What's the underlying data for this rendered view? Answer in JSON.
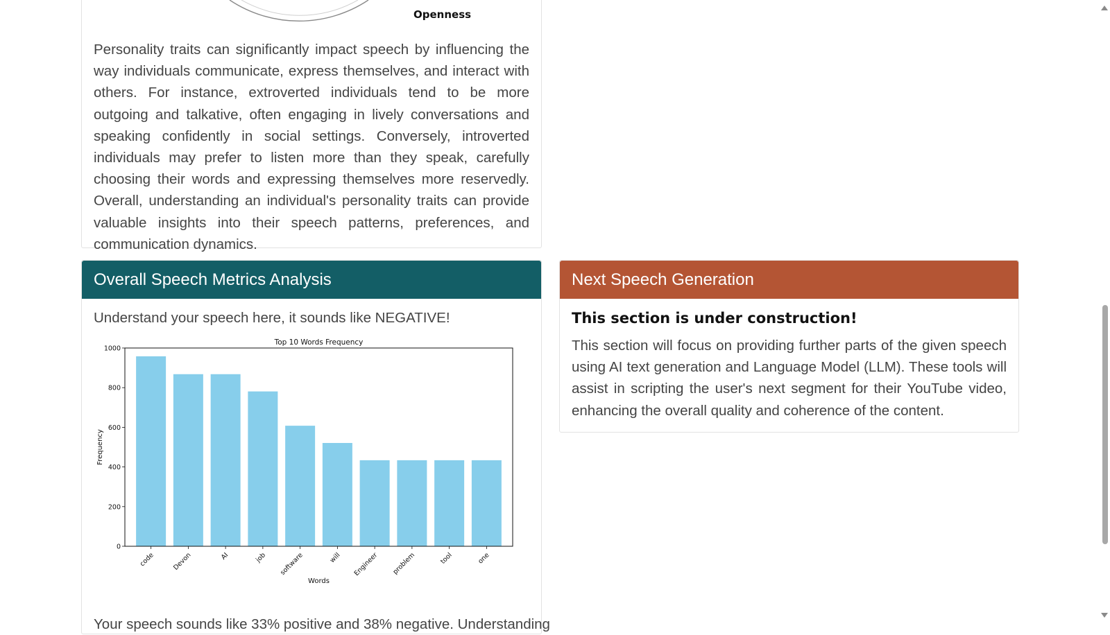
{
  "personality": {
    "radar_axis_label": "Openness",
    "paragraph": "Personality traits can significantly impact speech by influencing the way individuals communicate, express themselves, and interact with others. For instance, extroverted individuals tend to be more outgoing and talkative, often engaging in lively conversations and speaking confidently in social settings. Conversely, introverted individuals may prefer to listen more than they speak, carefully choosing their words and expressing themselves more reservedly. Overall, understanding an individual's personality traits can provide valuable insights into their speech patterns, preferences, and communication dynamics."
  },
  "metrics": {
    "header": "Overall Speech Metrics Analysis",
    "header_color": "#135e66",
    "subtitle": "Understand your speech here, it sounds like NEGATIVE!",
    "bottom_text": "Your speech sounds like 33% positive and 38% negative. Understanding"
  },
  "next": {
    "header": "Next Speech Generation",
    "header_color": "#b45534",
    "title": "This section is under construction!",
    "paragraph": "This section will focus on providing further parts of the given speech using AI text generation and Language Model (LLM). These tools will assist in scripting the user's next segment for their YouTube video, enhancing the overall quality and coherence of the content."
  },
  "chart_data": {
    "type": "bar",
    "title": "Top 10 Words Frequency",
    "xlabel": "Words",
    "ylabel": "Frequency",
    "categories": [
      "code",
      "Devon",
      "AI",
      "job",
      "software",
      "will",
      "Engineer",
      "problem",
      "tool",
      "one"
    ],
    "values": [
      958,
      868,
      868,
      781,
      608,
      521,
      434,
      434,
      434,
      434
    ],
    "ylim": [
      0,
      1000
    ],
    "yticks": [
      "0",
      "200",
      "400",
      "600",
      "800",
      "1000"
    ],
    "bar_color": "#87ceeb",
    "grid": false,
    "legend": "none"
  }
}
